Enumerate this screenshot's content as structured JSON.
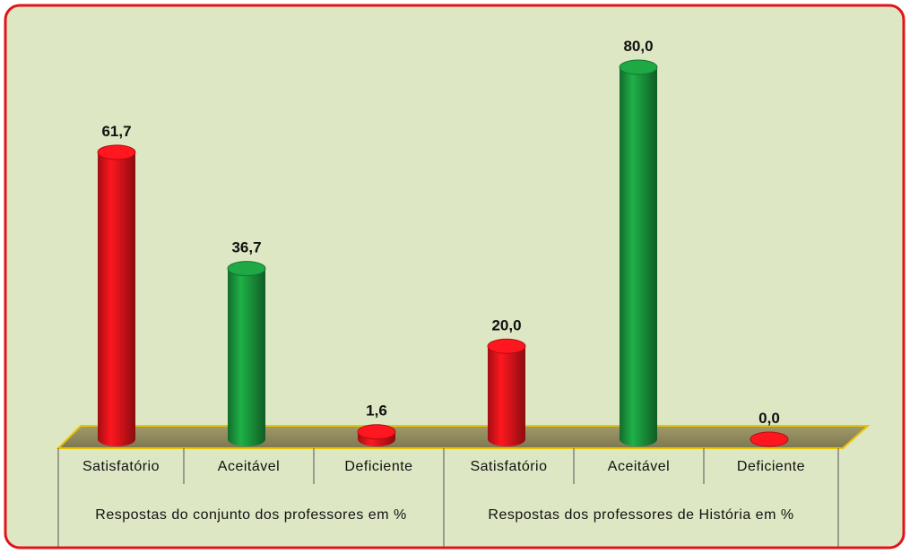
{
  "chart_data": {
    "type": "bar",
    "categories": [
      "Satisfatório",
      "Aceitável",
      "Deficiente",
      "Satisfatório",
      "Aceitável",
      "Deficiente"
    ],
    "groups": [
      "Respostas do conjunto dos professores em %",
      "Respostas dos professores de História em %"
    ],
    "values": [
      61.7,
      36.7,
      1.6,
      20.0,
      80.0,
      0.0
    ],
    "value_labels": [
      "61,7",
      "36,7",
      "1,6",
      "20,0",
      "80,0",
      "0,0"
    ],
    "colors": [
      "#e8141b",
      "#1b9a3e",
      "#e8141b",
      "#e8141b",
      "#1b9a3e",
      "#e8141b"
    ]
  }
}
